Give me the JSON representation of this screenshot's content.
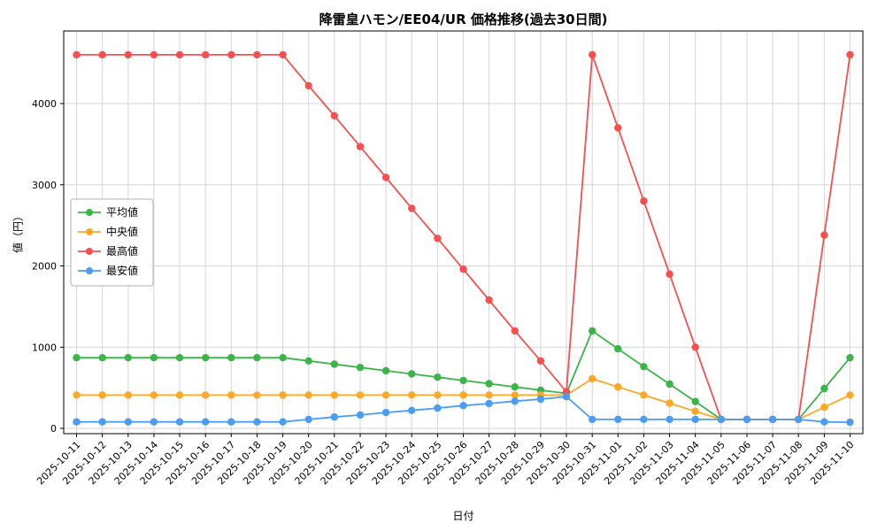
{
  "figure": {
    "title": "降雷皇ハモン/EE04/UR 価格推移(過去30日間)",
    "xlabel": "日付",
    "ylabel": "値（円）"
  },
  "chart_data": {
    "type": "line",
    "title": "降雷皇ハモン/EE04/UR 価格推移(過去30日間)",
    "xlabel": "日付",
    "ylabel": "値（円）",
    "grid": true,
    "legend_position": "center-left",
    "yticks": [
      0,
      1000,
      2000,
      3000,
      4000
    ],
    "ylim": [
      -65,
      4890
    ],
    "x": [
      "2025-10-11",
      "2025-10-12",
      "2025-10-13",
      "2025-10-14",
      "2025-10-15",
      "2025-10-16",
      "2025-10-17",
      "2025-10-18",
      "2025-10-19",
      "2025-10-20",
      "2025-10-21",
      "2025-10-22",
      "2025-10-23",
      "2025-10-24",
      "2025-10-25",
      "2025-10-26",
      "2025-10-27",
      "2025-10-28",
      "2025-10-29",
      "2025-10-30",
      "2025-10-31",
      "2025-11-01",
      "2025-11-02",
      "2025-11-03",
      "2025-11-04",
      "2025-11-05",
      "2025-11-06",
      "2025-11-07",
      "2025-11-08",
      "2025-11-09",
      "2025-11-10"
    ],
    "series": [
      {
        "key": "average",
        "name": "平均値",
        "color": "#3bb54a",
        "values": [
          870,
          870,
          870,
          870,
          870,
          870,
          870,
          870,
          870,
          830,
          790,
          750,
          710,
          670,
          630,
          590,
          550,
          510,
          470,
          430,
          1200,
          980,
          760,
          545,
          330,
          110,
          110,
          110,
          110,
          490,
          870
        ]
      },
      {
        "key": "median",
        "name": "中央値",
        "color": "#ffa726",
        "values": [
          410,
          410,
          410,
          410,
          410,
          410,
          410,
          410,
          410,
          410,
          410,
          410,
          410,
          410,
          410,
          410,
          410,
          410,
          410,
          410,
          610,
          510,
          410,
          310,
          210,
          110,
          110,
          110,
          110,
          260,
          410
        ]
      },
      {
        "key": "max",
        "name": "最高値",
        "color": "#f74f4f",
        "values": [
          4600,
          4600,
          4600,
          4600,
          4600,
          4600,
          4600,
          4600,
          4600,
          4220,
          3850,
          3470,
          3090,
          2710,
          2340,
          1960,
          1580,
          1200,
          830,
          450,
          4600,
          3700,
          2800,
          1900,
          1000,
          110,
          110,
          110,
          110,
          2380,
          4600
        ]
      },
      {
        "key": "min",
        "name": "最安値",
        "color": "#4a9df5",
        "values": [
          80,
          80,
          80,
          80,
          80,
          80,
          80,
          80,
          80,
          110,
          140,
          165,
          195,
          220,
          250,
          280,
          305,
          335,
          360,
          390,
          110,
          110,
          110,
          110,
          110,
          110,
          110,
          110,
          110,
          80,
          75
        ]
      }
    ]
  }
}
